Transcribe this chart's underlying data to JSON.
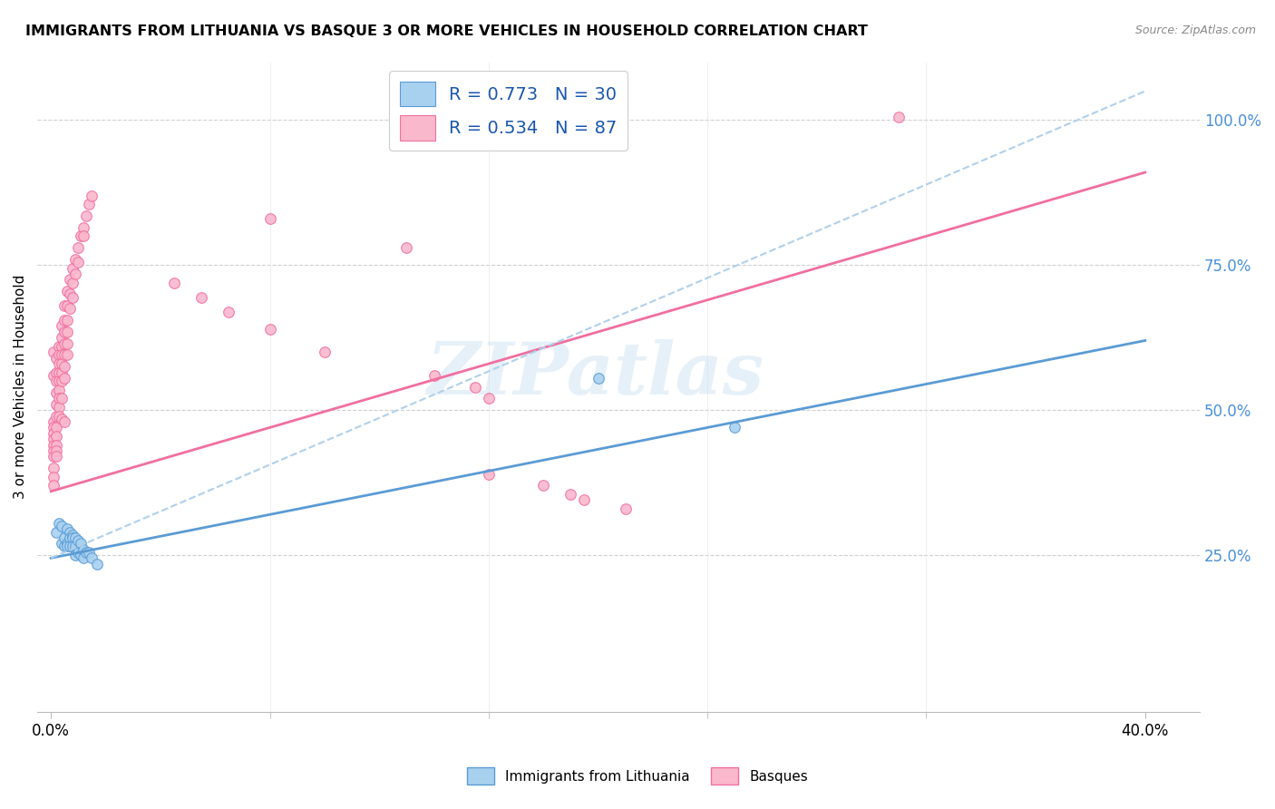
{
  "title": "IMMIGRANTS FROM LITHUANIA VS BASQUE 3 OR MORE VEHICLES IN HOUSEHOLD CORRELATION CHART",
  "source": "Source: ZipAtlas.com",
  "xlabel_ticks": [
    "0.0%",
    "",
    "",
    "",
    "",
    "40.0%"
  ],
  "xlabel_tick_vals": [
    0.0,
    0.08,
    0.16,
    0.24,
    0.32,
    0.4
  ],
  "ylabel": "3 or more Vehicles in Household",
  "ylabel_ticks": [
    "25.0%",
    "50.0%",
    "75.0%",
    "100.0%"
  ],
  "ylabel_tick_vals": [
    0.25,
    0.5,
    0.75,
    1.0
  ],
  "xlim": [
    -0.005,
    0.42
  ],
  "ylim": [
    -0.02,
    1.1
  ],
  "watermark": "ZIPatlas",
  "legend_R1": "R = 0.773",
  "legend_N1": "N = 30",
  "legend_R2": "R = 0.534",
  "legend_N2": "N = 87",
  "blue_color": "#a8d1f0",
  "pink_color": "#f9b8cb",
  "blue_line_color": "#5b9bd5",
  "pink_line_color": "#f06fa0",
  "dashed_line_color": "#b0d0ea",
  "lithuania_points": [
    [
      0.002,
      0.29
    ],
    [
      0.003,
      0.305
    ],
    [
      0.004,
      0.3
    ],
    [
      0.004,
      0.27
    ],
    [
      0.005,
      0.28
    ],
    [
      0.005,
      0.265
    ],
    [
      0.006,
      0.295
    ],
    [
      0.006,
      0.27
    ],
    [
      0.006,
      0.265
    ],
    [
      0.007,
      0.29
    ],
    [
      0.007,
      0.28
    ],
    [
      0.007,
      0.265
    ],
    [
      0.008,
      0.285
    ],
    [
      0.008,
      0.28
    ],
    [
      0.008,
      0.265
    ],
    [
      0.009,
      0.28
    ],
    [
      0.009,
      0.265
    ],
    [
      0.009,
      0.25
    ],
    [
      0.01,
      0.275
    ],
    [
      0.01,
      0.255
    ],
    [
      0.011,
      0.27
    ],
    [
      0.011,
      0.25
    ],
    [
      0.012,
      0.26
    ],
    [
      0.012,
      0.245
    ],
    [
      0.013,
      0.255
    ],
    [
      0.014,
      0.255
    ],
    [
      0.015,
      0.245
    ],
    [
      0.017,
      0.235
    ],
    [
      0.2,
      0.555
    ],
    [
      0.25,
      0.47
    ]
  ],
  "basque_points": [
    [
      0.001,
      0.56
    ],
    [
      0.001,
      0.6
    ],
    [
      0.001,
      0.48
    ],
    [
      0.001,
      0.47
    ],
    [
      0.001,
      0.46
    ],
    [
      0.001,
      0.45
    ],
    [
      0.001,
      0.44
    ],
    [
      0.001,
      0.43
    ],
    [
      0.001,
      0.42
    ],
    [
      0.001,
      0.4
    ],
    [
      0.001,
      0.385
    ],
    [
      0.001,
      0.37
    ],
    [
      0.002,
      0.59
    ],
    [
      0.002,
      0.565
    ],
    [
      0.002,
      0.55
    ],
    [
      0.002,
      0.53
    ],
    [
      0.002,
      0.51
    ],
    [
      0.002,
      0.49
    ],
    [
      0.002,
      0.47
    ],
    [
      0.002,
      0.455
    ],
    [
      0.002,
      0.44
    ],
    [
      0.002,
      0.43
    ],
    [
      0.002,
      0.42
    ],
    [
      0.003,
      0.61
    ],
    [
      0.003,
      0.595
    ],
    [
      0.003,
      0.58
    ],
    [
      0.003,
      0.565
    ],
    [
      0.003,
      0.55
    ],
    [
      0.003,
      0.535
    ],
    [
      0.003,
      0.52
    ],
    [
      0.003,
      0.505
    ],
    [
      0.003,
      0.49
    ],
    [
      0.004,
      0.645
    ],
    [
      0.004,
      0.625
    ],
    [
      0.004,
      0.61
    ],
    [
      0.004,
      0.595
    ],
    [
      0.004,
      0.58
    ],
    [
      0.004,
      0.565
    ],
    [
      0.004,
      0.55
    ],
    [
      0.004,
      0.52
    ],
    [
      0.004,
      0.485
    ],
    [
      0.005,
      0.68
    ],
    [
      0.005,
      0.655
    ],
    [
      0.005,
      0.635
    ],
    [
      0.005,
      0.615
    ],
    [
      0.005,
      0.595
    ],
    [
      0.005,
      0.575
    ],
    [
      0.005,
      0.555
    ],
    [
      0.005,
      0.48
    ],
    [
      0.006,
      0.705
    ],
    [
      0.006,
      0.68
    ],
    [
      0.006,
      0.655
    ],
    [
      0.006,
      0.635
    ],
    [
      0.006,
      0.615
    ],
    [
      0.006,
      0.595
    ],
    [
      0.007,
      0.725
    ],
    [
      0.007,
      0.7
    ],
    [
      0.007,
      0.675
    ],
    [
      0.008,
      0.745
    ],
    [
      0.008,
      0.72
    ],
    [
      0.008,
      0.695
    ],
    [
      0.009,
      0.76
    ],
    [
      0.009,
      0.735
    ],
    [
      0.01,
      0.78
    ],
    [
      0.01,
      0.755
    ],
    [
      0.011,
      0.8
    ],
    [
      0.012,
      0.815
    ],
    [
      0.012,
      0.8
    ],
    [
      0.013,
      0.835
    ],
    [
      0.014,
      0.855
    ],
    [
      0.015,
      0.87
    ],
    [
      0.045,
      0.72
    ],
    [
      0.055,
      0.695
    ],
    [
      0.065,
      0.67
    ],
    [
      0.08,
      0.64
    ],
    [
      0.1,
      0.6
    ],
    [
      0.14,
      0.56
    ],
    [
      0.155,
      0.54
    ],
    [
      0.16,
      0.52
    ],
    [
      0.16,
      0.39
    ],
    [
      0.18,
      0.37
    ],
    [
      0.19,
      0.355
    ],
    [
      0.195,
      0.345
    ],
    [
      0.21,
      0.33
    ],
    [
      0.31,
      1.005
    ],
    [
      0.08,
      0.83
    ],
    [
      0.13,
      0.78
    ]
  ],
  "lithuania_line_x": [
    0.0,
    0.4
  ],
  "lithuania_line_y": [
    0.245,
    0.62
  ],
  "basque_line_x": [
    0.0,
    0.4
  ],
  "basque_line_y": [
    0.36,
    0.91
  ],
  "dashed_line_x": [
    0.0,
    0.4
  ],
  "dashed_line_y": [
    0.245,
    1.05
  ]
}
